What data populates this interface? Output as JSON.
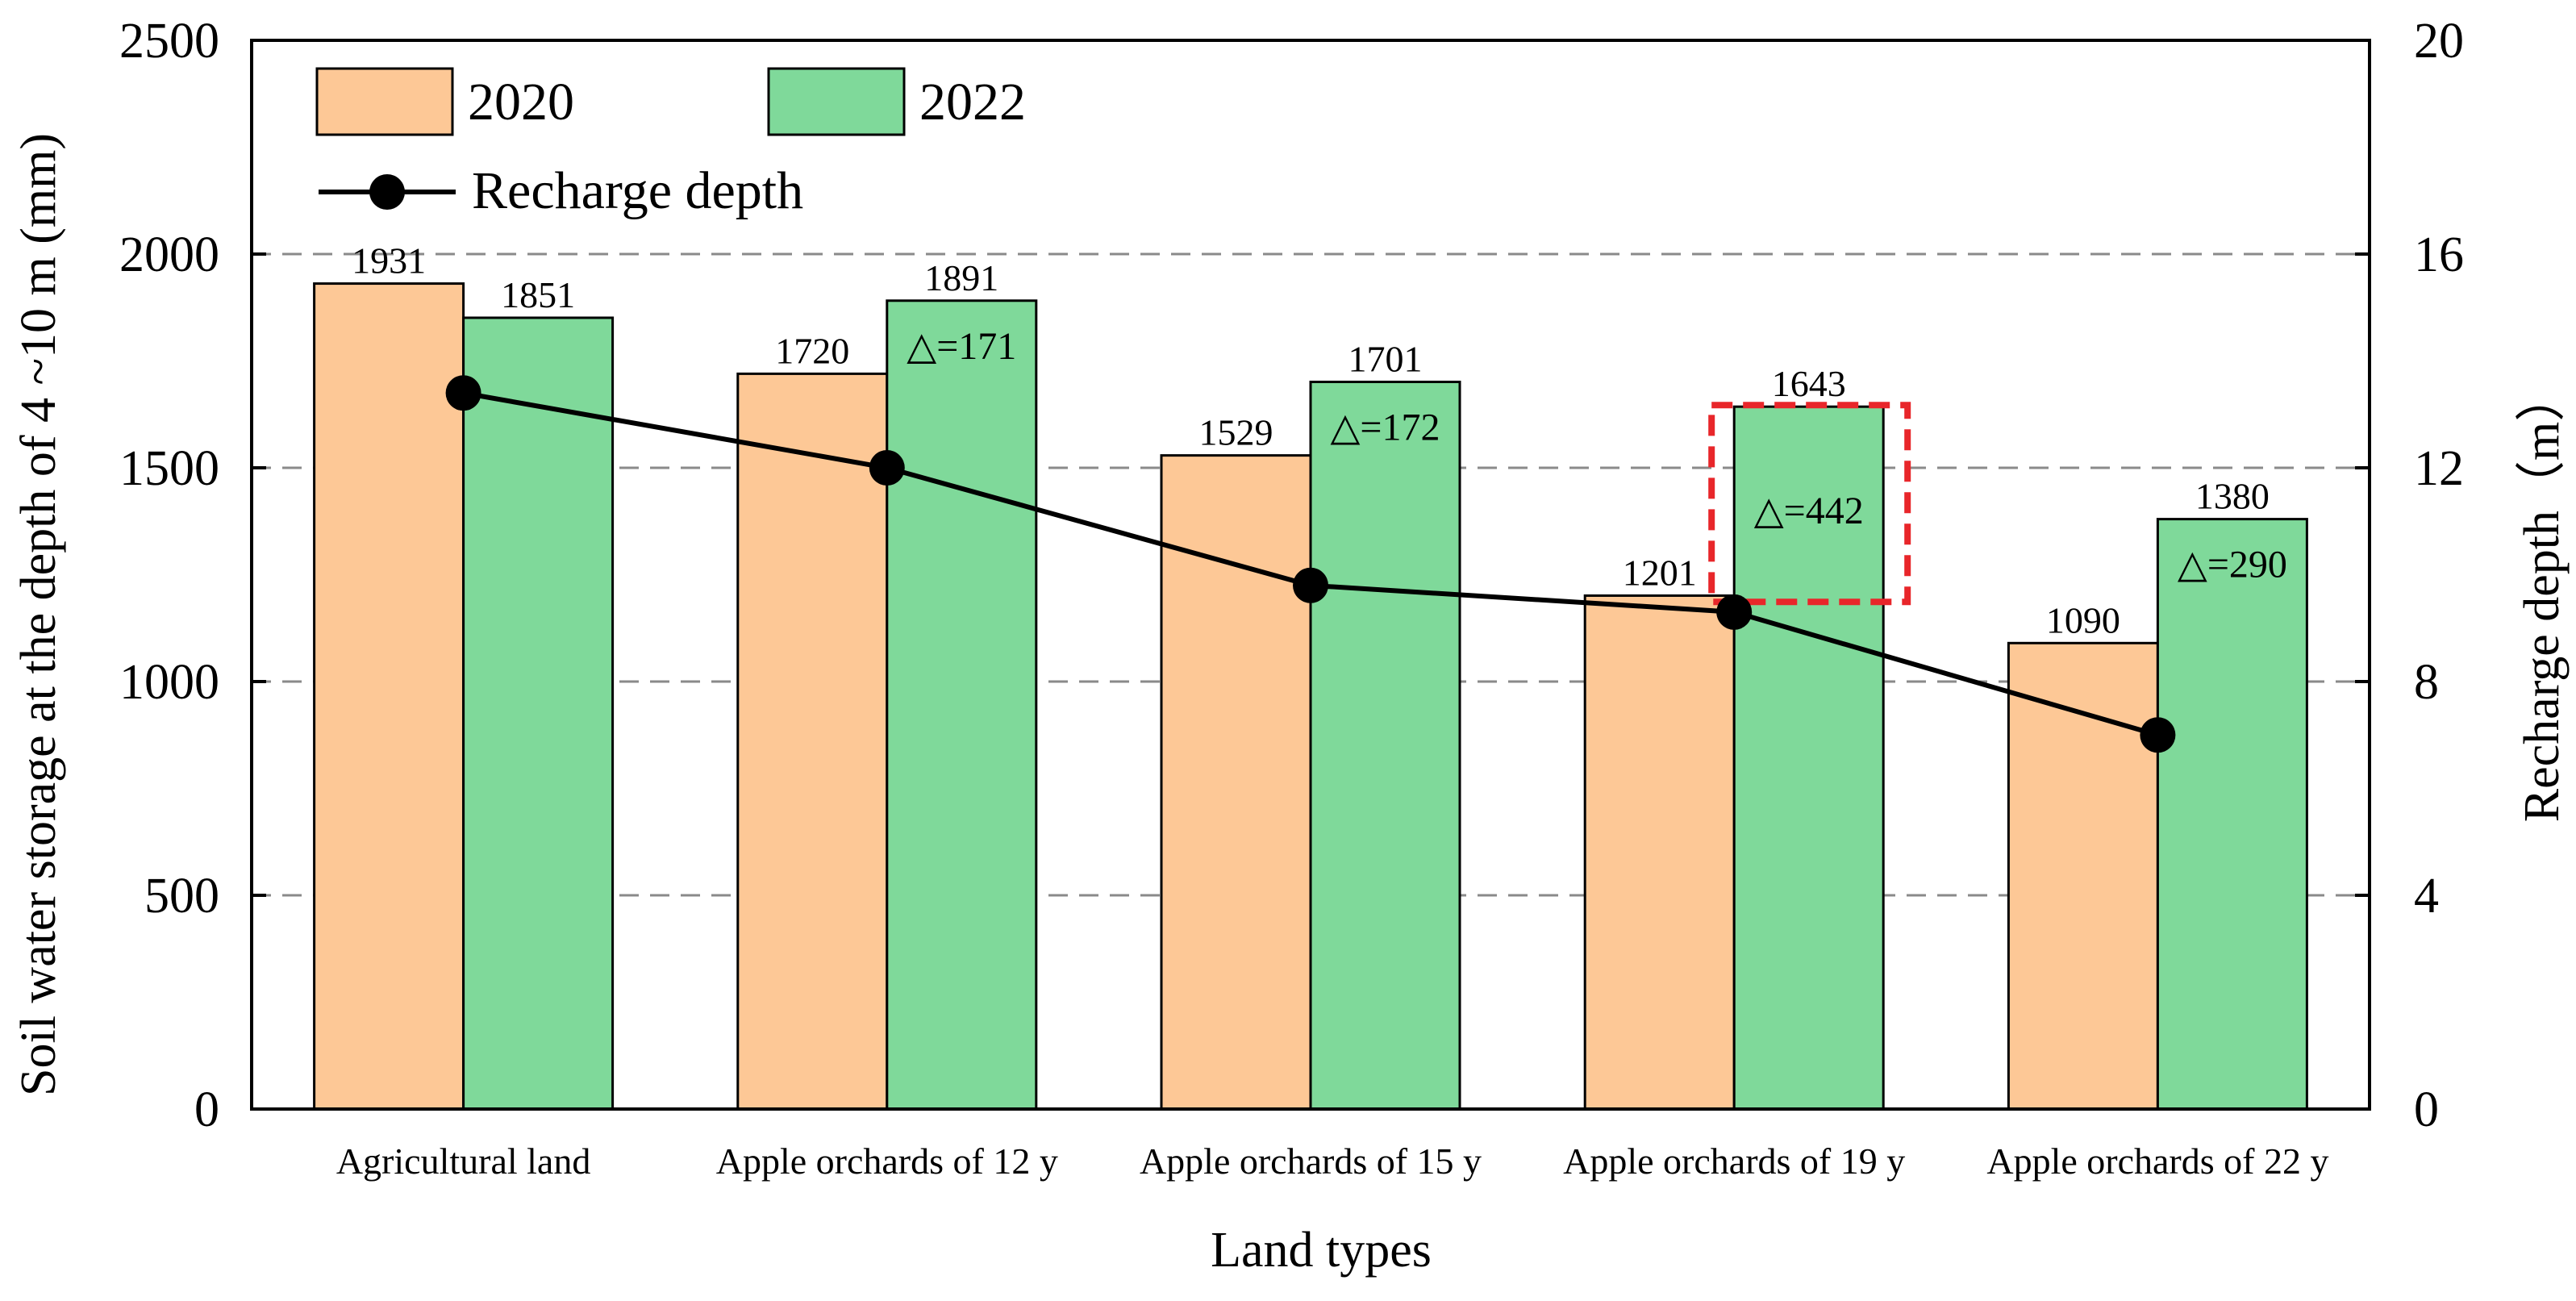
{
  "chart_data": {
    "type": "bar",
    "xlabel": "Land types",
    "ylabel": "Soil water storage at the depth of 4 ~10 m (mm)",
    "y2label": "Recharge depth（m）",
    "ylim": [
      0,
      2500
    ],
    "y2lim": [
      0,
      20
    ],
    "yticks": [
      0,
      500,
      1000,
      1500,
      2000,
      2500
    ],
    "y2ticks": [
      0,
      4,
      8,
      12,
      16,
      20
    ],
    "grid": "horizontal dashed",
    "legend_placement": "top-left",
    "categories": [
      "Agricultural land",
      "Apple orchards of 12 y",
      "Apple orchards of 15 y",
      "Apple orchards of 19 y",
      "Apple orchards of 22 y"
    ],
    "series": [
      {
        "name": "2020",
        "kind": "bar",
        "color": "#FDC896",
        "values": [
          1931,
          1720,
          1529,
          1201,
          1090
        ]
      },
      {
        "name": "2022",
        "kind": "bar",
        "color": "#7FD99A",
        "values": [
          1851,
          1891,
          1701,
          1643,
          1380
        ]
      },
      {
        "name": "Recharge depth",
        "kind": "line",
        "axis": "right",
        "color": "#000000",
        "values": [
          13.4,
          12.0,
          9.8,
          9.3,
          7.0
        ]
      }
    ],
    "annotations": [
      {
        "category_index": 1,
        "text": "△=171"
      },
      {
        "category_index": 2,
        "text": "△=172"
      },
      {
        "category_index": 3,
        "text": "△=442",
        "highlight_color": "#E8262A"
      },
      {
        "category_index": 4,
        "text": "△=290"
      }
    ]
  }
}
